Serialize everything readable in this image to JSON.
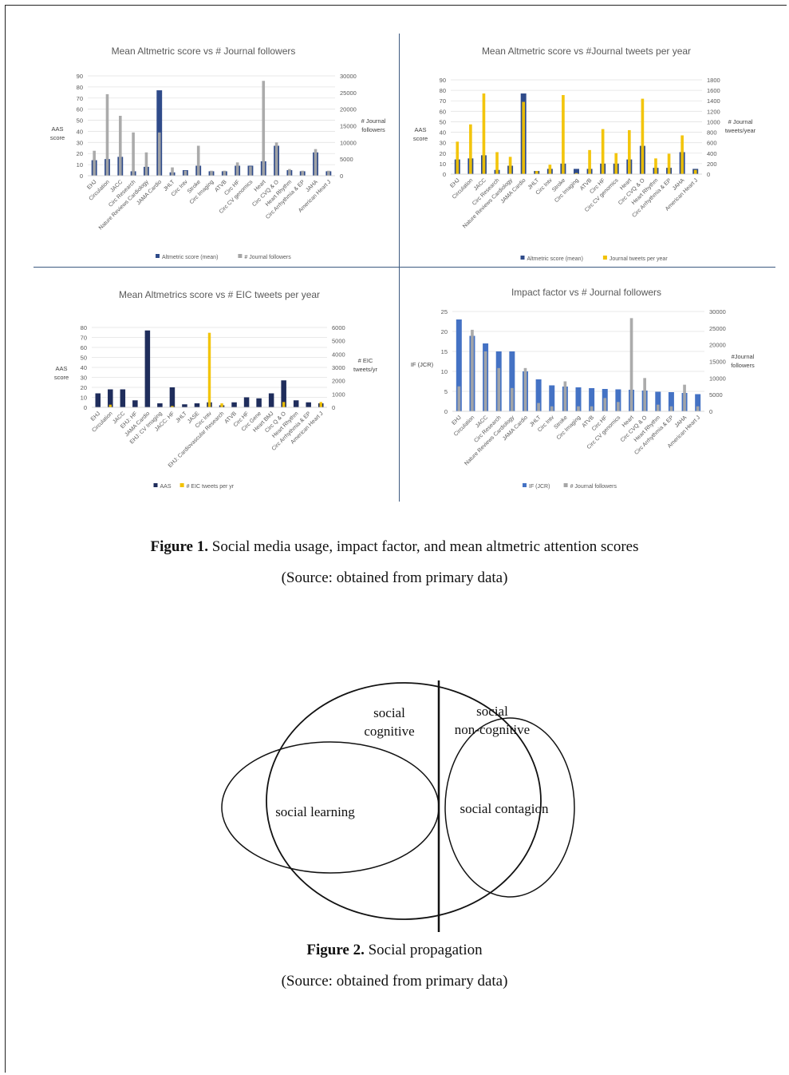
{
  "figure1": {
    "caption_bold": "Figure 1.",
    "caption_text": " Social media usage, impact factor, and mean altmetric attention scores",
    "source": "(Source: obtained from primary data)"
  },
  "figure2": {
    "caption_bold": "Figure 2.",
    "caption_text": " Social propagation",
    "source": "(Source: obtained from primary data)",
    "labels": {
      "social_cognitive": [
        "social",
        "cognitive"
      ],
      "social_non_cognitive": [
        "social",
        "non-cognitive"
      ],
      "social_learning": "social learning",
      "social_contagion": "social contagion"
    }
  },
  "chart_data": [
    {
      "type": "bar",
      "title": "Mean Altmetric score vs # Journal followers",
      "ylabel": [
        "AAS",
        "score"
      ],
      "y2label": [
        "# Journal",
        "followers"
      ],
      "ylim": [
        0,
        90
      ],
      "y2lim": [
        0,
        30000
      ],
      "yticks": [
        "0",
        "10",
        "20",
        "30",
        "40",
        "50",
        "60",
        "70",
        "80",
        "90"
      ],
      "y2ticks": [
        "0",
        "5000",
        "10000",
        "15000",
        "20000",
        "25000",
        "30000"
      ],
      "categories": [
        "EHJ",
        "Circulation",
        "JACC",
        "Circ Research",
        "Nature Reviews Cardiology",
        "JAMA Cardio",
        "JHLT",
        "Circ Intv",
        "Stroke",
        "Circ Imaging",
        "ATVB",
        "Circ HF",
        "Circ CV genomics",
        "Heart",
        "Circ CVQ & O",
        "Heart Rhythm",
        "Circ Arrhythmia & EP",
        "JAHA",
        "American Heart J"
      ],
      "series": [
        {
          "name": "Altmetric score (mean)",
          "axis": "left",
          "color": "#2f4b8a",
          "values": [
            14,
            15,
            17,
            4,
            8,
            77,
            3,
            5,
            9,
            4,
            4,
            9,
            9,
            13,
            27,
            5,
            4,
            21,
            4
          ]
        },
        {
          "name": "# Journal followers",
          "axis": "right",
          "color": "#a6a6a6",
          "values": [
            7500,
            24500,
            18000,
            13000,
            7000,
            13000,
            2500,
            1500,
            9000,
            1500,
            1500,
            4000,
            2800,
            28500,
            10000,
            2000,
            1500,
            8000,
            1500
          ]
        }
      ]
    },
    {
      "type": "bar",
      "title": "Mean Altmetric score vs #Journal tweets per year",
      "ylabel": [
        "AAS",
        "score"
      ],
      "y2label": [
        "# Journal",
        "tweets/year"
      ],
      "ylim": [
        0,
        90
      ],
      "y2lim": [
        0,
        1800
      ],
      "yticks": [
        "0",
        "10",
        "20",
        "30",
        "40",
        "50",
        "60",
        "70",
        "80",
        "90"
      ],
      "y2ticks": [
        "0",
        "200",
        "400",
        "600",
        "800",
        "1000",
        "1200",
        "1400",
        "1600",
        "1800"
      ],
      "categories": [
        "EHJ",
        "Circulation",
        "JACC",
        "Circ Research",
        "Nature Reviews Cardiology",
        "JAMA Cardio",
        "JHLT",
        "Circ Intv",
        "Stroke",
        "Circ Imaging",
        "ATVB",
        "Circ HF",
        "Circ CV genomics",
        "Heart",
        "Circ CVQ & O",
        "Heart Rhythm",
        "Circ Arrhythmia & EP",
        "JAHA",
        "American Heart J"
      ],
      "series": [
        {
          "name": "Altmetric score (mean)",
          "axis": "left",
          "color": "#2f4b8a",
          "values": [
            14,
            15,
            18,
            4,
            8,
            77,
            3,
            5,
            10,
            5,
            5,
            10,
            10,
            14,
            27,
            6,
            6,
            21,
            5
          ]
        },
        {
          "name": "Journal tweets per year",
          "axis": "right",
          "color": "#f2c200",
          "values": [
            620,
            950,
            1540,
            420,
            330,
            1380,
            60,
            180,
            1510,
            20,
            460,
            860,
            400,
            840,
            1440,
            300,
            390,
            740,
            80
          ]
        }
      ]
    },
    {
      "type": "bar",
      "title": "Mean Altmetrics score vs # EIC tweets per year",
      "ylabel": [
        "AAS",
        "score"
      ],
      "y2label": [
        "# EIC",
        "tweets/yr"
      ],
      "ylim": [
        0,
        80
      ],
      "y2lim": [
        0,
        6000
      ],
      "yticks": [
        "0",
        "10",
        "20",
        "30",
        "40",
        "50",
        "60",
        "70",
        "80"
      ],
      "y2ticks": [
        "0",
        "1000",
        "2000",
        "3000",
        "4000",
        "5000",
        "6000"
      ],
      "categories": [
        "EHJ",
        "Circulation",
        "JACC",
        "EHJ: HF",
        "JAMA Cardio",
        "EHJ: CV Imaging",
        "JACC: HF",
        "JHLT",
        "JASE",
        "Circ Intv",
        "EHJ: Cardiovascular Research",
        "ATVB",
        "Circ HF",
        "Circ Gene",
        "Heart BMJ",
        "Circ Q & O",
        "Heart Rhythm",
        "Circ Arrhythmia & EP",
        "American Heart J"
      ],
      "series": [
        {
          "name": "AAS",
          "axis": "left",
          "color": "#1f2d5c",
          "values": [
            14,
            18,
            18,
            7,
            77,
            4,
            20,
            3,
            4,
            5,
            2,
            5,
            10,
            9,
            14,
            27,
            7,
            5,
            4
          ]
        },
        {
          "name": "# EIC tweets per yr",
          "axis": "right",
          "color": "#f2c200",
          "values": [
            0,
            200,
            0,
            0,
            0,
            0,
            100,
            0,
            0,
            5600,
            300,
            0,
            0,
            0,
            0,
            400,
            0,
            0,
            400
          ]
        }
      ]
    },
    {
      "type": "bar",
      "title": "Impact factor vs # Journal followers",
      "ylabel": [
        "IF (JCR)"
      ],
      "y2label": [
        "#Journal",
        "followers"
      ],
      "ylim": [
        0,
        25
      ],
      "y2lim": [
        0,
        30000
      ],
      "yticks": [
        "0",
        "5",
        "10",
        "15",
        "20",
        "25"
      ],
      "y2ticks": [
        "0",
        "5000",
        "10000",
        "15000",
        "20000",
        "25000",
        "30000"
      ],
      "categories": [
        "EHJ",
        "Circulation",
        "JACC",
        "Circ Research",
        "Nature Reviews Cardiology",
        "JAMA Cardio",
        "JHLT",
        "Circ Intv",
        "Stroke",
        "Circ Imaging",
        "ATVB",
        "Circ HF",
        "Circ CV genomics",
        "Heart",
        "Circ CVQ & O",
        "Heart Rhythm",
        "Circ Arrhythmia & EP",
        "JAHA",
        "American Heart J"
      ],
      "series": [
        {
          "name": "IF (JCR)",
          "axis": "left",
          "color": "#4472c4",
          "values": [
            23,
            18.9,
            17,
            15,
            15,
            10,
            8,
            6.5,
            6.2,
            6,
            5.8,
            5.6,
            5.5,
            5.4,
            5.2,
            4.9,
            4.8,
            4.6,
            4.3
          ]
        },
        {
          "name": "# Journal followers",
          "axis": "right",
          "color": "#a6a6a6",
          "values": [
            7500,
            24500,
            18000,
            13000,
            7000,
            13000,
            2500,
            1500,
            9000,
            1500,
            1500,
            4000,
            2800,
            28000,
            10000,
            2000,
            1500,
            8000,
            1500
          ]
        }
      ]
    }
  ]
}
